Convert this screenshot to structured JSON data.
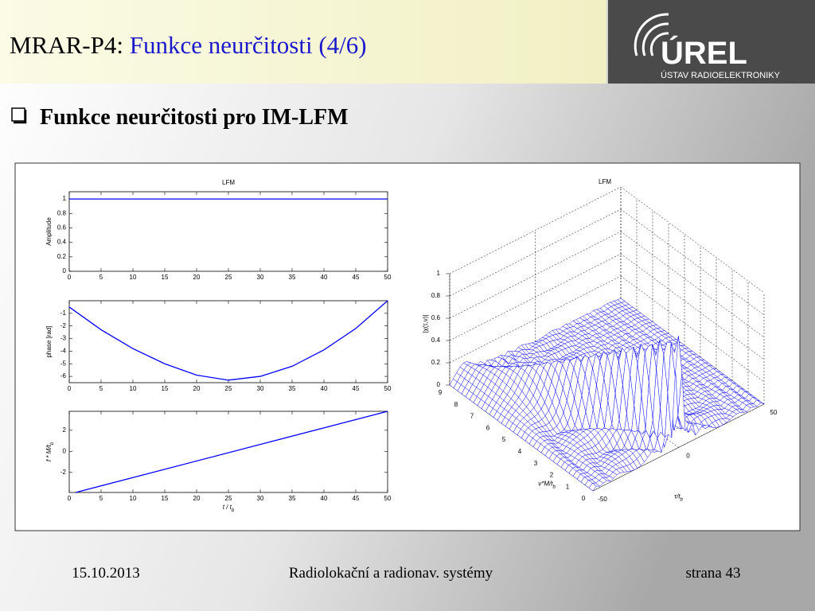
{
  "header": {
    "prefix": "MRAR-P4:",
    "title": "Funkce neurčitosti (4/6)"
  },
  "logo": {
    "name": "ÚREL",
    "subtitle": "ÚSTAV RADIOELEKTRONIKY"
  },
  "bullet": "Funkce neurčitosti pro IM-LFM",
  "figure": {
    "left": {
      "title": "LFM",
      "xlim": [
        0,
        50
      ],
      "xticks": [
        0,
        5,
        10,
        15,
        20,
        25,
        30,
        35,
        40,
        45,
        50
      ],
      "xlabel": {
        "text": "t / t",
        "sub": "b"
      },
      "subplots": [
        {
          "ylabel": {
            "text": "Amplitude"
          },
          "ylim": [
            0,
            1.1
          ],
          "yticks": [
            0,
            0.2,
            0.4,
            0.6,
            0.8,
            1
          ],
          "color": "#0000ff",
          "x": [
            0,
            50
          ],
          "values": [
            1,
            1
          ]
        },
        {
          "ylabel": {
            "text": "phase [rad]"
          },
          "ylim": [
            -6.5,
            0
          ],
          "yticks": [
            -6,
            -5,
            -4,
            -3,
            -2,
            -1
          ],
          "color": "#0000ff",
          "x": [
            0,
            5,
            10,
            15,
            20,
            25,
            30,
            35,
            40,
            45,
            50
          ],
          "values": [
            -0.5,
            -2.3,
            -3.8,
            -5.0,
            -5.9,
            -6.3,
            -6.0,
            -5.2,
            -3.9,
            -2.2,
            0
          ]
        },
        {
          "ylabel": {
            "text": "f * M/t",
            "sub": "b"
          },
          "ylim": [
            -3.9,
            3.8
          ],
          "yticks": [
            -2,
            0,
            2
          ],
          "color": "#0000ff",
          "x": [
            1,
            50
          ],
          "values": [
            -3.9,
            3.8
          ]
        }
      ]
    },
    "right": {
      "title": "LFM",
      "zlabel": "|χ(τ,ν)|",
      "vlabel": {
        "text": "ν*M/t",
        "sub": "b"
      },
      "taulabel": {
        "text": "τ/t",
        "sub": "b"
      },
      "zlim": [
        0,
        1
      ],
      "zticks": [
        0,
        0.2,
        0.4,
        0.6,
        0.8,
        1
      ],
      "vlim": [
        0,
        9
      ],
      "vticks": [
        0,
        1,
        2,
        3,
        4,
        5,
        6,
        7,
        8,
        9
      ],
      "taulim": [
        -50,
        50
      ],
      "tauticks": [
        -50,
        0,
        50
      ]
    }
  },
  "footer": {
    "date": "15.10.2013",
    "course": "Radiolokační a radionav. systémy",
    "page": "strana 43"
  }
}
